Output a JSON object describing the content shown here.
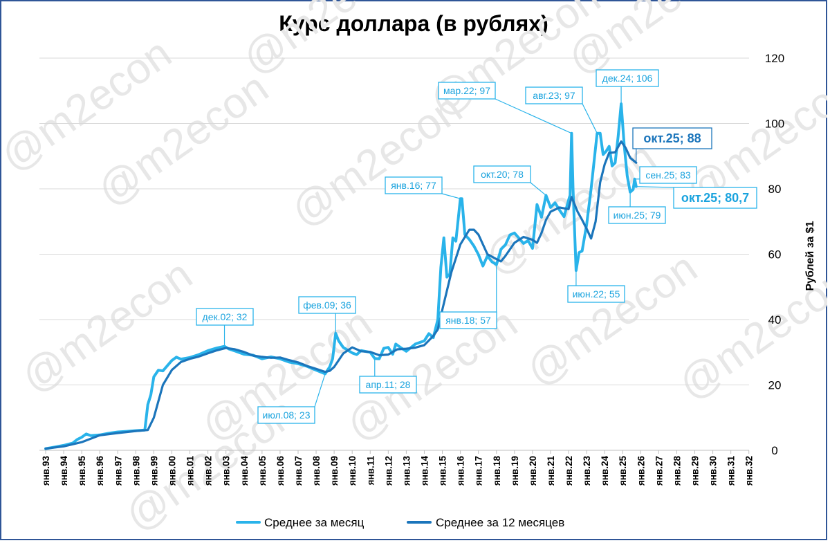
{
  "chart_data": {
    "type": "line",
    "title": "Курс доллара (в рублях)",
    "ylabel": "Рублей за $1",
    "ylim": [
      0,
      120
    ],
    "yticks": [
      "0",
      "20",
      "40",
      "60",
      "80",
      "100",
      "120"
    ],
    "y_axis_side": "right",
    "grid": "horizontal",
    "legend_position": "bottom",
    "watermark": "@m2econ",
    "x_labels": [
      "янв.93",
      "янв.94",
      "янв.95",
      "янв.96",
      "янв.97",
      "янв.98",
      "янв.99",
      "янв.00",
      "янв.01",
      "янв.02",
      "янв.03",
      "янв.04",
      "янв.05",
      "янв.06",
      "янв.07",
      "янв.08",
      "янв.09",
      "янв.10",
      "янв.11",
      "янв.12",
      "янв.13",
      "янв.14",
      "янв.15",
      "янв.16",
      "янв.17",
      "янв.18",
      "янв.19",
      "янв.20",
      "янв.21",
      "янв.22",
      "янв.23",
      "янв.24",
      "янв.25",
      "янв.26",
      "янв.27",
      "янв.28",
      "янв.29",
      "янв.30",
      "янв.31",
      "янв.32"
    ],
    "series": [
      {
        "name": "Среднее за месяц",
        "color": "#29b3ea",
        "points": [
          [
            "1993-01",
            0.5
          ],
          [
            "1993-07",
            1.0
          ],
          [
            "1994-01",
            1.5
          ],
          [
            "1994-07",
            2.2
          ],
          [
            "1994-10",
            3.3
          ],
          [
            "1995-01",
            4.0
          ],
          [
            "1995-04",
            5.0
          ],
          [
            "1995-07",
            4.5
          ],
          [
            "1996-01",
            4.7
          ],
          [
            "1996-07",
            5.2
          ],
          [
            "1997-01",
            5.6
          ],
          [
            "1997-07",
            5.8
          ],
          [
            "1998-01",
            6.0
          ],
          [
            "1998-07",
            6.2
          ],
          [
            "1998-09",
            14.0
          ],
          [
            "1998-11",
            17.0
          ],
          [
            "1999-01",
            22.5
          ],
          [
            "1999-04",
            24.5
          ],
          [
            "1999-07",
            24.3
          ],
          [
            "2000-01",
            27.5
          ],
          [
            "2000-04",
            28.5
          ],
          [
            "2000-07",
            27.9
          ],
          [
            "2001-01",
            28.4
          ],
          [
            "2001-07",
            29.3
          ],
          [
            "2002-01",
            30.5
          ],
          [
            "2002-07",
            31.3
          ],
          [
            "2002-12",
            31.8
          ],
          [
            "2003-03",
            31.0
          ],
          [
            "2003-07",
            30.4
          ],
          [
            "2004-01",
            29.4
          ],
          [
            "2004-07",
            29.1
          ],
          [
            "2005-01",
            28.0
          ],
          [
            "2005-07",
            28.6
          ],
          [
            "2006-01",
            28.0
          ],
          [
            "2006-07",
            27.0
          ],
          [
            "2007-01",
            26.5
          ],
          [
            "2007-07",
            25.7
          ],
          [
            "2008-01",
            24.5
          ],
          [
            "2008-07",
            23.4
          ],
          [
            "2008-10",
            25.5
          ],
          [
            "2008-12",
            28.0
          ],
          [
            "2009-02",
            35.8
          ],
          [
            "2009-04",
            33.5
          ],
          [
            "2009-07",
            31.5
          ],
          [
            "2010-01",
            29.8
          ],
          [
            "2010-04",
            29.3
          ],
          [
            "2010-07",
            30.5
          ],
          [
            "2011-01",
            30.0
          ],
          [
            "2011-04",
            28.1
          ],
          [
            "2011-07",
            28.0
          ],
          [
            "2011-10",
            31.2
          ],
          [
            "2012-01",
            31.5
          ],
          [
            "2012-04",
            29.4
          ],
          [
            "2012-06",
            32.5
          ],
          [
            "2012-10",
            31.2
          ],
          [
            "2013-01",
            30.3
          ],
          [
            "2013-07",
            32.5
          ],
          [
            "2014-01",
            33.5
          ],
          [
            "2014-04",
            35.7
          ],
          [
            "2014-07",
            34.5
          ],
          [
            "2014-10",
            40.0
          ],
          [
            "2014-12",
            56.0
          ],
          [
            "2015-02",
            65.0
          ],
          [
            "2015-04",
            53.0
          ],
          [
            "2015-06",
            54.0
          ],
          [
            "2015-08",
            65.0
          ],
          [
            "2015-10",
            64.0
          ],
          [
            "2016-01",
            77.0
          ],
          [
            "2016-02",
            77.0
          ],
          [
            "2016-04",
            66.0
          ],
          [
            "2016-07",
            64.5
          ],
          [
            "2016-10",
            62.5
          ],
          [
            "2017-01",
            59.9
          ],
          [
            "2017-04",
            56.4
          ],
          [
            "2017-07",
            59.5
          ],
          [
            "2017-10",
            57.7
          ],
          [
            "2018-01",
            56.8
          ],
          [
            "2018-04",
            61.5
          ],
          [
            "2018-07",
            62.9
          ],
          [
            "2018-10",
            65.9
          ],
          [
            "2019-01",
            66.5
          ],
          [
            "2019-04",
            64.9
          ],
          [
            "2019-07",
            63.3
          ],
          [
            "2019-10",
            64.2
          ],
          [
            "2020-01",
            61.8
          ],
          [
            "2020-04",
            75.2
          ],
          [
            "2020-07",
            71.3
          ],
          [
            "2020-10",
            78.0
          ],
          [
            "2021-01",
            74.3
          ],
          [
            "2021-04",
            75.7
          ],
          [
            "2021-07",
            73.5
          ],
          [
            "2021-10",
            71.5
          ],
          [
            "2022-01",
            76.5
          ],
          [
            "2022-02",
            78.0
          ],
          [
            "2022-03",
            97.0
          ],
          [
            "2022-04",
            80.0
          ],
          [
            "2022-06",
            55.0
          ],
          [
            "2022-08",
            60.5
          ],
          [
            "2022-10",
            61.0
          ],
          [
            "2023-01",
            69.0
          ],
          [
            "2023-04",
            80.0
          ],
          [
            "2023-08",
            97.0
          ],
          [
            "2023-10",
            97.0
          ],
          [
            "2023-12",
            90.5
          ],
          [
            "2024-02",
            91.5
          ],
          [
            "2024-04",
            93.0
          ],
          [
            "2024-06",
            87.0
          ],
          [
            "2024-08",
            88.0
          ],
          [
            "2024-10",
            96.0
          ],
          [
            "2024-12",
            106.0
          ],
          [
            "2025-02",
            93.5
          ],
          [
            "2025-04",
            84.0
          ],
          [
            "2025-06",
            79.0
          ],
          [
            "2025-08",
            79.8
          ],
          [
            "2025-09",
            83.0
          ],
          [
            "2025-10",
            80.7
          ]
        ]
      },
      {
        "name": "Среднее за 12 месяцев",
        "color": "#1b75bb",
        "points": [
          [
            "1993-01",
            0.5
          ],
          [
            "1994-01",
            1.2
          ],
          [
            "1995-01",
            2.5
          ],
          [
            "1996-01",
            4.6
          ],
          [
            "1997-01",
            5.3
          ],
          [
            "1998-01",
            5.9
          ],
          [
            "1998-09",
            6.2
          ],
          [
            "1999-01",
            10.0
          ],
          [
            "1999-07",
            20.0
          ],
          [
            "2000-01",
            24.6
          ],
          [
            "2000-07",
            27.0
          ],
          [
            "2001-01",
            28.0
          ],
          [
            "2001-07",
            28.7
          ],
          [
            "2002-01",
            29.7
          ],
          [
            "2002-07",
            30.6
          ],
          [
            "2003-01",
            31.3
          ],
          [
            "2003-07",
            30.9
          ],
          [
            "2004-01",
            30.1
          ],
          [
            "2004-07",
            29.0
          ],
          [
            "2005-01",
            28.6
          ],
          [
            "2005-07",
            28.3
          ],
          [
            "2006-01",
            28.4
          ],
          [
            "2006-07",
            27.6
          ],
          [
            "2007-01",
            26.9
          ],
          [
            "2007-07",
            25.8
          ],
          [
            "2008-01",
            24.9
          ],
          [
            "2008-07",
            24.0
          ],
          [
            "2008-10",
            24.3
          ],
          [
            "2009-01",
            25.5
          ],
          [
            "2009-07",
            29.6
          ],
          [
            "2010-01",
            31.5
          ],
          [
            "2010-07",
            30.3
          ],
          [
            "2011-01",
            30.1
          ],
          [
            "2011-07",
            29.1
          ],
          [
            "2012-01",
            29.3
          ],
          [
            "2012-07",
            30.9
          ],
          [
            "2013-01",
            31.1
          ],
          [
            "2013-07",
            31.4
          ],
          [
            "2014-01",
            32.2
          ],
          [
            "2014-07",
            35.0
          ],
          [
            "2014-10",
            37.0
          ],
          [
            "2015-01",
            43.0
          ],
          [
            "2015-07",
            54.5
          ],
          [
            "2016-01",
            63.0
          ],
          [
            "2016-07",
            67.5
          ],
          [
            "2016-10",
            67.5
          ],
          [
            "2017-01",
            66.0
          ],
          [
            "2017-07",
            60.0
          ],
          [
            "2018-01",
            58.5
          ],
          [
            "2018-04",
            57.8
          ],
          [
            "2018-07",
            59.5
          ],
          [
            "2019-01",
            63.5
          ],
          [
            "2019-07",
            65.3
          ],
          [
            "2020-01",
            64.4
          ],
          [
            "2020-04",
            63.5
          ],
          [
            "2020-07",
            66.5
          ],
          [
            "2020-10",
            70.5
          ],
          [
            "2021-01",
            73.0
          ],
          [
            "2021-07",
            74.3
          ],
          [
            "2022-01",
            73.8
          ],
          [
            "2022-03",
            77.5
          ],
          [
            "2022-07",
            73.0
          ],
          [
            "2022-10",
            70.5
          ],
          [
            "2023-01",
            67.8
          ],
          [
            "2023-04",
            64.8
          ],
          [
            "2023-07",
            70.0
          ],
          [
            "2023-10",
            82.0
          ],
          [
            "2024-01",
            87.5
          ],
          [
            "2024-04",
            91.0
          ],
          [
            "2024-08",
            91.2
          ],
          [
            "2024-12",
            94.5
          ],
          [
            "2025-03",
            92.5
          ],
          [
            "2025-06",
            89.5
          ],
          [
            "2025-10",
            88.0
          ]
        ]
      }
    ],
    "annotations": [
      {
        "text": "дек.02; 32",
        "x": "2002-12",
        "y": 31.8
      },
      {
        "text": "июл.08; 23",
        "x": "2008-07",
        "y": 23.4
      },
      {
        "text": "фев.09; 36",
        "x": "2009-02",
        "y": 35.8
      },
      {
        "text": "апр.11; 28",
        "x": "2011-04",
        "y": 28.1
      },
      {
        "text": "янв.16; 77",
        "x": "2016-01",
        "y": 77.0
      },
      {
        "text": "янв.18; 57",
        "x": "2018-01",
        "y": 56.8
      },
      {
        "text": "окт.20; 78",
        "x": "2020-10",
        "y": 78.0
      },
      {
        "text": "мар.22; 97",
        "x": "2022-03",
        "y": 97.0
      },
      {
        "text": "июн.22; 55",
        "x": "2022-06",
        "y": 55.0
      },
      {
        "text": "авг.23; 97",
        "x": "2023-08",
        "y": 97.0
      },
      {
        "text": "дек.24; 106",
        "x": "2024-12",
        "y": 106.0
      },
      {
        "text": "июн.25; 79",
        "x": "2025-06",
        "y": 79.0
      },
      {
        "text": "сен.25; 83",
        "x": "2025-09",
        "y": 83.0
      },
      {
        "text": "окт.25; 80,7",
        "x": "2025-10",
        "y": 80.7,
        "emphasis": true
      },
      {
        "text": "окт.25; 88",
        "x": "2025-10",
        "y": 88.0,
        "emphasis": true,
        "series": "Среднее за 12 месяцев"
      }
    ]
  }
}
